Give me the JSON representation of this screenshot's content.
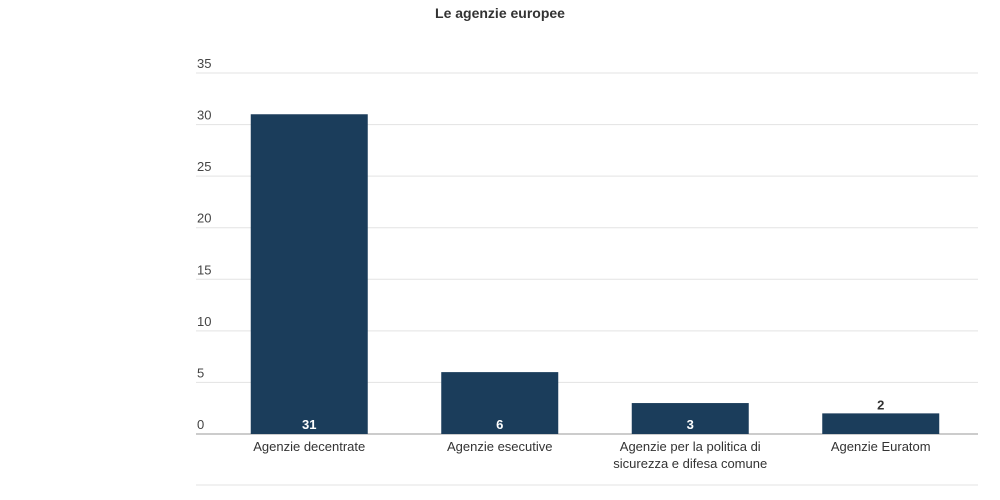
{
  "chart_data": {
    "type": "bar",
    "title": "Le agenzie europee",
    "xlabel": "",
    "ylabel": "",
    "categories": [
      [
        "Agenzie decentrate"
      ],
      [
        "Agenzie esecutive"
      ],
      [
        "Agenzie per la politica di",
        "sicurezza e difesa comune"
      ],
      [
        "Agenzie Euratom"
      ]
    ],
    "values": [
      31,
      6,
      3,
      2
    ],
    "ylim": [
      0,
      35
    ],
    "yticks": [
      0,
      5,
      10,
      15,
      20,
      25,
      30,
      35
    ],
    "grid": true,
    "legend": "none",
    "bar_color": "#1b3d5b",
    "grid_color": "#e3e3e3",
    "axis_color": "#999999"
  }
}
